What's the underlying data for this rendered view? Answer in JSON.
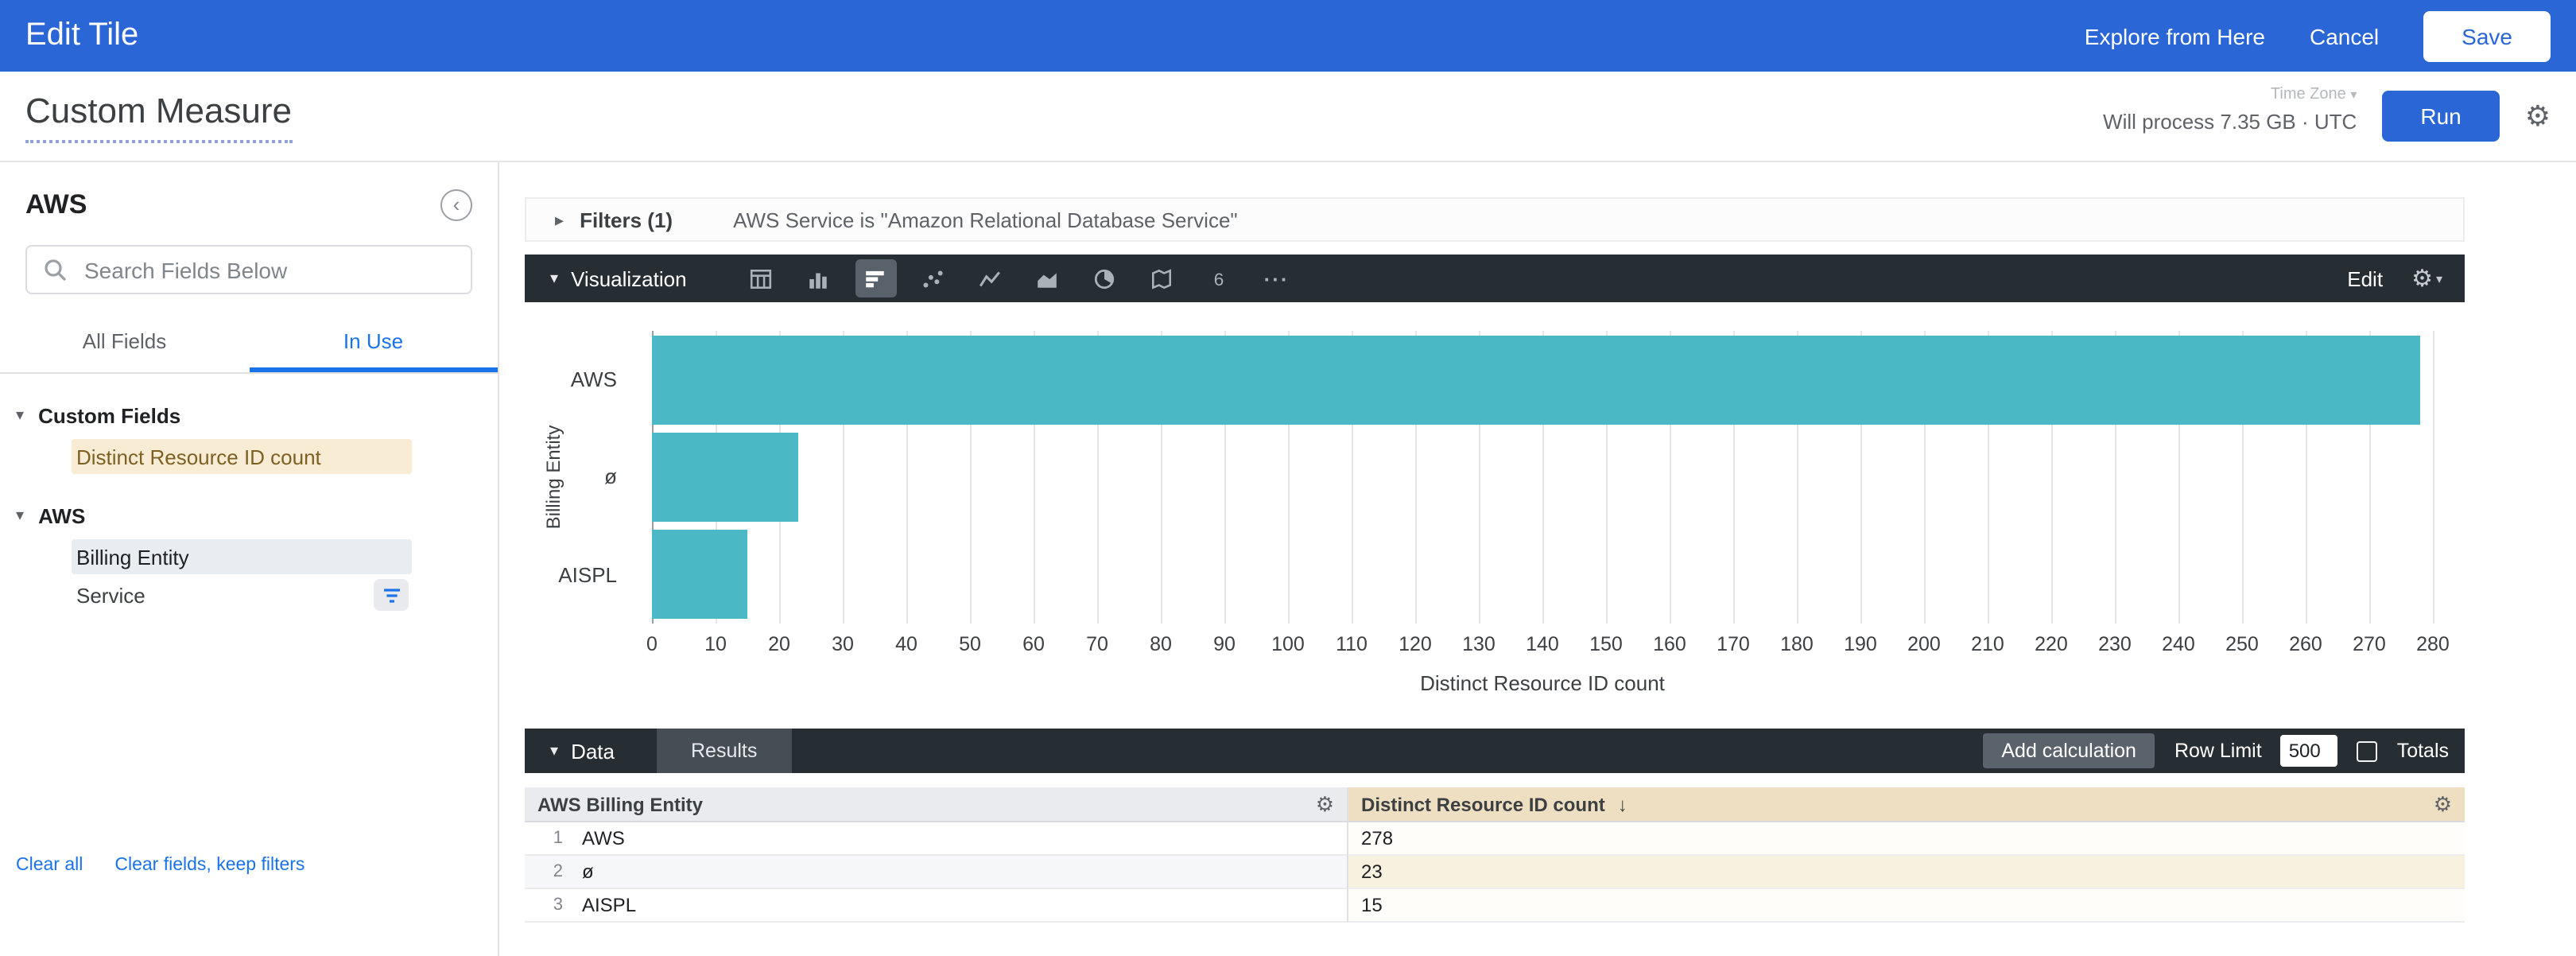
{
  "colors": {
    "accent": "#2a66d6",
    "link": "#1a73e8",
    "bar_fill": "#4bb8c6",
    "dark_bar": "#262d33"
  },
  "top_bar": {
    "title": "Edit Tile",
    "explore_label": "Explore from Here",
    "cancel_label": "Cancel",
    "save_label": "Save"
  },
  "header": {
    "title": "Custom Measure",
    "time_zone_label": "Time Zone",
    "process_info": "Will process 7.35 GB · UTC",
    "run_label": "Run"
  },
  "sidebar": {
    "title": "AWS",
    "search_placeholder": "Search Fields Below",
    "tabs": [
      {
        "label": "All Fields",
        "active": false
      },
      {
        "label": "In Use",
        "active": true
      }
    ],
    "sections": [
      {
        "label": "Custom Fields",
        "items": [
          {
            "label": "Distinct Resource ID count",
            "type": "measure",
            "filtered": false
          }
        ]
      },
      {
        "label": "AWS",
        "items": [
          {
            "label": "Billing Entity",
            "type": "dimension-selected",
            "filtered": false
          },
          {
            "label": "Service",
            "type": "plain",
            "filtered": true
          }
        ]
      }
    ],
    "clear_all_label": "Clear all",
    "clear_fields_label": "Clear fields, keep filters"
  },
  "filters_bar": {
    "label": "Filters (1)",
    "summary": "AWS Service is \"Amazon Relational Database Service\""
  },
  "viz_bar": {
    "label": "Visualization",
    "icons": [
      "table",
      "column-chart",
      "bar-chart",
      "scatter",
      "line-chart",
      "area-chart",
      "pie-chart",
      "map",
      "single-value",
      "more"
    ],
    "selected_icon": "bar-chart",
    "edit_label": "Edit"
  },
  "chart_data": {
    "type": "bar",
    "orientation": "horizontal",
    "categories": [
      "AWS",
      "ø",
      "AISPL"
    ],
    "values": [
      278,
      23,
      15
    ],
    "title": "",
    "xlabel": "Distinct Resource ID count",
    "ylabel": "Billing Entity",
    "xlim": [
      0,
      280
    ],
    "tick_step": 10,
    "grid": true,
    "bar_color": "#4bb8c6"
  },
  "data_bar": {
    "label": "Data",
    "results_tab_label": "Results",
    "add_calculation_label": "Add calculation",
    "row_limit_label": "Row Limit",
    "row_limit_value": "500",
    "totals_label": "Totals",
    "totals_checked": false
  },
  "table": {
    "columns": [
      {
        "label": "AWS Billing Entity",
        "sort": null
      },
      {
        "label": "Distinct Resource ID count",
        "sort": "desc"
      }
    ],
    "rows": [
      {
        "index": "1",
        "cells": [
          "AWS",
          "278"
        ]
      },
      {
        "index": "2",
        "cells": [
          "ø",
          "23"
        ]
      },
      {
        "index": "3",
        "cells": [
          "AISPL",
          "15"
        ]
      }
    ]
  }
}
